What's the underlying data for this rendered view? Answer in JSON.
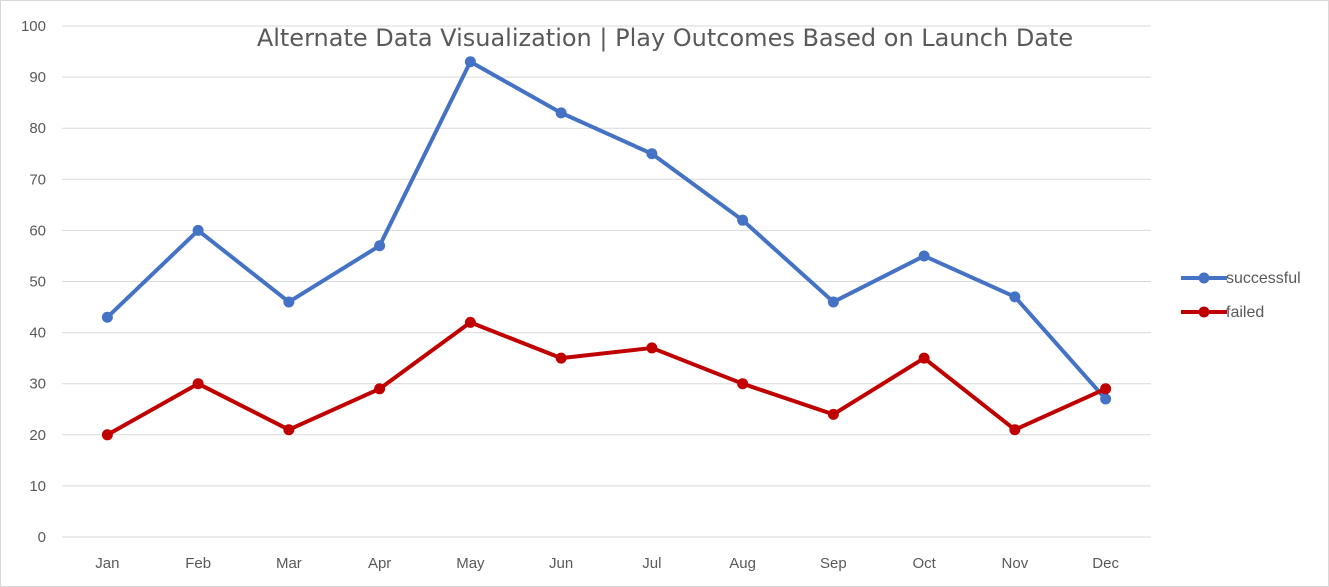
{
  "chart_data": {
    "type": "line",
    "title": "Alternate Data Visualization | Play Outcomes Based on Launch Date",
    "xlabel": "",
    "ylabel": "",
    "categories": [
      "Jan",
      "Feb",
      "Mar",
      "Apr",
      "May",
      "Jun",
      "Jul",
      "Aug",
      "Sep",
      "Oct",
      "Nov",
      "Dec"
    ],
    "series": [
      {
        "name": "successful",
        "color": "#4472C4",
        "values": [
          43,
          60,
          46,
          57,
          93,
          83,
          75,
          62,
          46,
          55,
          47,
          27
        ]
      },
      {
        "name": "failed",
        "color": "#C00000",
        "values": [
          20,
          30,
          21,
          29,
          42,
          35,
          37,
          30,
          24,
          35,
          21,
          29
        ]
      }
    ],
    "ylim": [
      0,
      100
    ],
    "yticks": [
      0,
      10,
      20,
      30,
      40,
      50,
      60,
      70,
      80,
      90,
      100
    ],
    "grid": true,
    "legend": "right"
  }
}
